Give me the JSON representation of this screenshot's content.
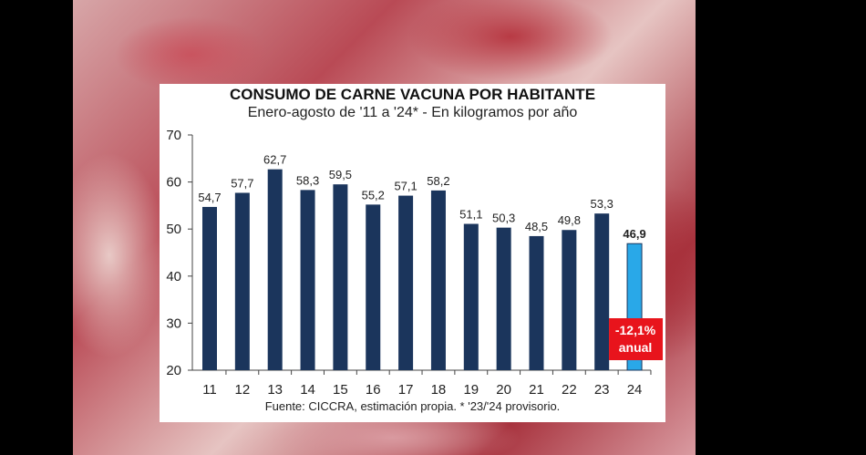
{
  "chart_data": {
    "type": "bar",
    "title": "CONSUMO DE CARNE VACUNA POR HABITANTE",
    "subtitle": "Enero-agosto de '11 a '24* - En kilogramos por año",
    "categories": [
      "11",
      "12",
      "13",
      "14",
      "15",
      "16",
      "17",
      "18",
      "19",
      "20",
      "21",
      "22",
      "23",
      "24"
    ],
    "values": [
      54.7,
      57.7,
      62.7,
      58.3,
      59.5,
      55.2,
      57.1,
      58.2,
      51.1,
      50.3,
      48.5,
      49.8,
      53.3,
      46.9
    ],
    "value_labels": [
      "54,7",
      "57,7",
      "62,7",
      "58,3",
      "59,5",
      "55,2",
      "57,1",
      "58,2",
      "51,1",
      "50,3",
      "48,5",
      "49,8",
      "53,3",
      "46,9"
    ],
    "ylim": [
      20,
      70
    ],
    "yticks": [
      "20",
      "30",
      "40",
      "50",
      "60",
      "70"
    ],
    "grid": false,
    "colors": {
      "bar": "#1b355c",
      "highlight_bar": "#29a8e8",
      "badge": "#e8141c"
    },
    "annotation": {
      "line1": "-12,1%",
      "line2": "anual"
    },
    "source": "Fuente: CICCRA, estimación propia. * '23/'24 provisorio."
  }
}
